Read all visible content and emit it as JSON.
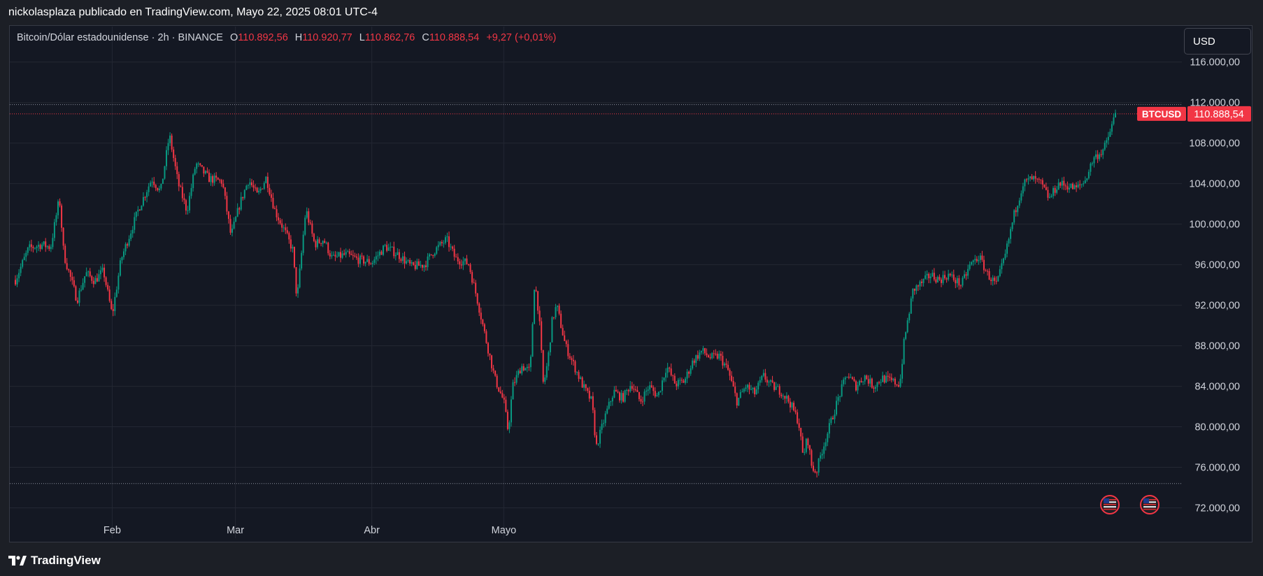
{
  "header": {
    "publisher_line": "nickolasplaza publicado en TradingView.com, Mayo 22, 2025 08:01 UTC-4"
  },
  "legend": {
    "symbol": "Bitcoin/Dólar estadounidense · 2h · BINANCE",
    "open_label": "O",
    "open": "110.892,56",
    "high_label": "H",
    "high": "110.920,77",
    "low_label": "L",
    "low": "110.862,76",
    "close_label": "C",
    "close": "110.888,54",
    "change": "+9,27 (+0,01%)"
  },
  "currency_button": "USD",
  "price_tag": {
    "symbol": "BTCUSD",
    "value": "110.888,54"
  },
  "footer": {
    "brand": "TradingView"
  },
  "colors": {
    "up": "#089981",
    "down": "#f23645",
    "background": "#141823",
    "grid": "#232733",
    "axis_text": "#d1d4dc"
  },
  "icons": [
    "us-flag-event-icon",
    "us-flag-event-icon"
  ],
  "chart_data": {
    "type": "candlestick",
    "title": "Bitcoin/Dólar estadounidense · 2h · BINANCE",
    "x_tick_labels": [
      "Feb",
      "Mar",
      "Abr",
      "Mayo"
    ],
    "y_tick_values": [
      72000,
      76000,
      80000,
      84000,
      88000,
      92000,
      96000,
      100000,
      104000,
      108000,
      112000,
      116000
    ],
    "y_tick_labels": [
      "72.000,00",
      "76.000,00",
      "80.000,00",
      "84.000,00",
      "88.000,00",
      "92.000,00",
      "96.000,00",
      "100.000,00",
      "104.000,00",
      "108.000,00",
      "112.000,00",
      "116.000,00"
    ],
    "ylim": [
      69000,
      119500
    ],
    "grid": true,
    "last_price": 110888.54,
    "horizontal_lines": [
      {
        "value": 110888.54,
        "style": "dotted",
        "color": "#f23645"
      },
      {
        "value": 111800,
        "style": "dotted",
        "color": "#8a8f9c"
      },
      {
        "value": 74400,
        "style": "dotted",
        "color": "#8a8f9c"
      }
    ],
    "series": [
      {
        "date_range": [
          "2025-01-10",
          "2025-05-22"
        ],
        "price_path": [
          [
            0,
            94500
          ],
          [
            3,
            97600
          ],
          [
            6,
            98000
          ],
          [
            8,
            97700
          ],
          [
            10,
            102600
          ],
          [
            11,
            97000
          ],
          [
            13,
            94000
          ],
          [
            14,
            92500
          ],
          [
            16,
            95200
          ],
          [
            18,
            94400
          ],
          [
            20,
            95400
          ],
          [
            22,
            91000
          ],
          [
            24,
            96500
          ],
          [
            26,
            99000
          ],
          [
            28,
            101500
          ],
          [
            31,
            104500
          ],
          [
            33,
            103200
          ],
          [
            35,
            108800
          ],
          [
            37,
            104000
          ],
          [
            39,
            101300
          ],
          [
            41,
            106000
          ],
          [
            44,
            104500
          ],
          [
            47,
            104200
          ],
          [
            49,
            98800
          ],
          [
            51,
            102000
          ],
          [
            53,
            104400
          ],
          [
            55,
            102800
          ],
          [
            57,
            104600
          ],
          [
            59,
            101300
          ],
          [
            61,
            99500
          ],
          [
            63,
            97500
          ],
          [
            64,
            92500
          ],
          [
            65,
            97000
          ],
          [
            66,
            101500
          ],
          [
            68,
            98000
          ],
          [
            70,
            98500
          ],
          [
            72,
            96600
          ],
          [
            75,
            97000
          ],
          [
            78,
            96500
          ],
          [
            81,
            96200
          ],
          [
            84,
            97800
          ],
          [
            87,
            97000
          ],
          [
            90,
            95800
          ],
          [
            93,
            96000
          ],
          [
            95,
            97300
          ],
          [
            98,
            98500
          ],
          [
            100,
            96600
          ],
          [
            103,
            96100
          ],
          [
            105,
            92500
          ],
          [
            107,
            88500
          ],
          [
            109,
            84700
          ],
          [
            111,
            82500
          ],
          [
            112,
            79500
          ],
          [
            113,
            84000
          ],
          [
            115,
            86000
          ],
          [
            117,
            85500
          ],
          [
            118,
            94500
          ],
          [
            119,
            91000
          ],
          [
            120,
            84000
          ],
          [
            121,
            86500
          ],
          [
            122,
            90500
          ],
          [
            123,
            92000
          ],
          [
            125,
            88000
          ],
          [
            127,
            86000
          ],
          [
            129,
            84000
          ],
          [
            131,
            82500
          ],
          [
            132,
            78000
          ],
          [
            134,
            81000
          ],
          [
            136,
            83500
          ],
          [
            138,
            82800
          ],
          [
            140,
            84300
          ],
          [
            142,
            82500
          ],
          [
            144,
            84000
          ],
          [
            146,
            83000
          ],
          [
            148,
            86000
          ],
          [
            150,
            84200
          ],
          [
            152,
            84500
          ],
          [
            154,
            86500
          ],
          [
            156,
            87500
          ],
          [
            158,
            86800
          ],
          [
            160,
            87000
          ],
          [
            162,
            85500
          ],
          [
            164,
            82500
          ],
          [
            166,
            84000
          ],
          [
            168,
            83300
          ],
          [
            170,
            85000
          ],
          [
            172,
            84000
          ],
          [
            174,
            83500
          ],
          [
            176,
            82400
          ],
          [
            178,
            80500
          ],
          [
            179,
            77000
          ],
          [
            180,
            79000
          ],
          [
            181,
            76000
          ],
          [
            182,
            75500
          ],
          [
            183,
            77200
          ],
          [
            185,
            80000
          ],
          [
            187,
            82800
          ],
          [
            189,
            85200
          ],
          [
            191,
            84000
          ],
          [
            193,
            85000
          ],
          [
            195,
            84000
          ],
          [
            197,
            84800
          ],
          [
            199,
            84500
          ],
          [
            201,
            84200
          ],
          [
            202,
            88500
          ],
          [
            204,
            93500
          ],
          [
            206,
            94200
          ],
          [
            208,
            95000
          ],
          [
            210,
            94500
          ],
          [
            212,
            95000
          ],
          [
            215,
            94000
          ],
          [
            217,
            96000
          ],
          [
            219,
            96800
          ],
          [
            221,
            95000
          ],
          [
            223,
            94000
          ],
          [
            225,
            97000
          ],
          [
            227,
            101000
          ],
          [
            229,
            104000
          ],
          [
            231,
            104500
          ],
          [
            233,
            104000
          ],
          [
            235,
            102500
          ],
          [
            237,
            104000
          ],
          [
            239,
            103800
          ],
          [
            241,
            103500
          ],
          [
            243,
            104200
          ],
          [
            245,
            106500
          ],
          [
            247,
            107200
          ],
          [
            248,
            108000
          ],
          [
            249,
            109500
          ],
          [
            250,
            110888
          ]
        ]
      }
    ]
  }
}
